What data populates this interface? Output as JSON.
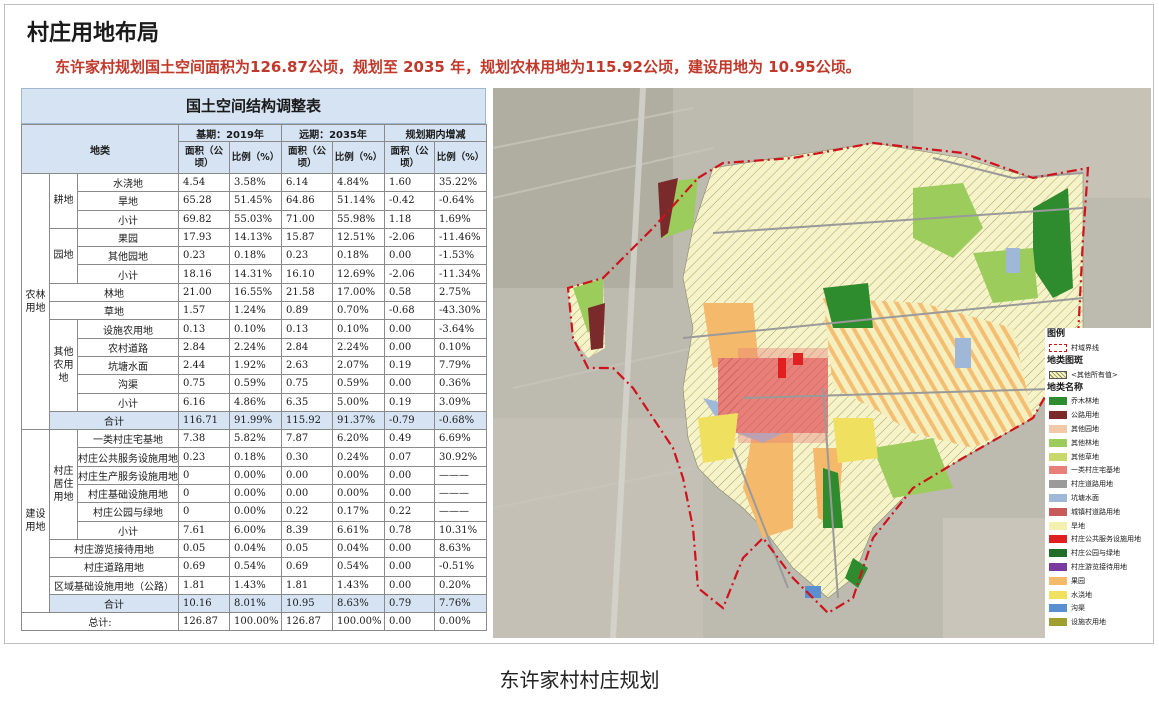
{
  "page_title": "村庄用地布局",
  "summary": "东许家村规划国土空间面积为126.87公顷，规划至 2035 年，规划农林用地为115.92公顷，建设用地为 10.95公顷。",
  "table": {
    "title": "国土空间结构调整表",
    "header": {
      "category": "地类",
      "base": "基期：2019年",
      "future": "远期：2035年",
      "change": "规划期内增减",
      "area": "面积（公顷）",
      "ratio": "比例（%）"
    },
    "groups": {
      "agri": "农林用地",
      "farmland": "耕地",
      "garden": "园地",
      "other_agri": "其他农用地",
      "construction": "建设用地",
      "village_res": "村庄居住用地"
    },
    "rows": [
      {
        "name": "水浇地",
        "v": [
          "4.54",
          "3.58%",
          "6.14",
          "4.84%",
          "1.60",
          "35.22%"
        ]
      },
      {
        "name": "旱地",
        "v": [
          "65.28",
          "51.45%",
          "64.86",
          "51.14%",
          "-0.42",
          "-0.64%"
        ]
      },
      {
        "name": "小计",
        "v": [
          "69.82",
          "55.03%",
          "71.00",
          "55.98%",
          "1.18",
          "1.69%"
        ]
      },
      {
        "name": "果园",
        "v": [
          "17.93",
          "14.13%",
          "15.87",
          "12.51%",
          "-2.06",
          "-11.46%"
        ]
      },
      {
        "name": "其他园地",
        "v": [
          "0.23",
          "0.18%",
          "0.23",
          "0.18%",
          "0.00",
          "-1.53%"
        ]
      },
      {
        "name": "小计",
        "v": [
          "18.16",
          "14.31%",
          "16.10",
          "12.69%",
          "-2.06",
          "-11.34%"
        ]
      },
      {
        "name": "林地",
        "v": [
          "21.00",
          "16.55%",
          "21.58",
          "17.00%",
          "0.58",
          "2.75%"
        ]
      },
      {
        "name": "草地",
        "v": [
          "1.57",
          "1.24%",
          "0.89",
          "0.70%",
          "-0.68",
          "-43.30%"
        ]
      },
      {
        "name": "设施农用地",
        "v": [
          "0.13",
          "0.10%",
          "0.13",
          "0.10%",
          "0.00",
          "-3.64%"
        ]
      },
      {
        "name": "农村道路",
        "v": [
          "2.84",
          "2.24%",
          "2.84",
          "2.24%",
          "0.00",
          "0.10%"
        ]
      },
      {
        "name": "坑塘水面",
        "v": [
          "2.44",
          "1.92%",
          "2.63",
          "2.07%",
          "0.19",
          "7.79%"
        ]
      },
      {
        "name": "沟渠",
        "v": [
          "0.75",
          "0.59%",
          "0.75",
          "0.59%",
          "0.00",
          "0.36%"
        ]
      },
      {
        "name": "小计",
        "v": [
          "6.16",
          "4.86%",
          "6.35",
          "5.00%",
          "0.19",
          "3.09%"
        ]
      },
      {
        "name": "合计",
        "v": [
          "116.71",
          "91.99%",
          "115.92",
          "91.37%",
          "-0.79",
          "-0.68%"
        ]
      },
      {
        "name": "一类村庄宅基地",
        "v": [
          "7.38",
          "5.82%",
          "7.87",
          "6.20%",
          "0.49",
          "6.69%"
        ]
      },
      {
        "name": "村庄公共服务设施用地",
        "v": [
          "0.23",
          "0.18%",
          "0.30",
          "0.24%",
          "0.07",
          "30.92%"
        ]
      },
      {
        "name": "村庄生产服务设施用地",
        "v": [
          "0",
          "0.00%",
          "0.00",
          "0.00%",
          "0.00",
          "———"
        ]
      },
      {
        "name": "村庄基础设施用地",
        "v": [
          "0",
          "0.00%",
          "0.00",
          "0.00%",
          "0.00",
          "———"
        ]
      },
      {
        "name": "村庄公园与绿地",
        "v": [
          "0",
          "0.00%",
          "0.22",
          "0.17%",
          "0.22",
          "———"
        ]
      },
      {
        "name": "小计",
        "v": [
          "7.61",
          "6.00%",
          "8.39",
          "6.61%",
          "0.78",
          "10.31%"
        ]
      },
      {
        "name": "村庄游览接待用地",
        "v": [
          "0.05",
          "0.04%",
          "0.05",
          "0.04%",
          "0.00",
          "8.63%"
        ]
      },
      {
        "name": "村庄道路用地",
        "v": [
          "0.69",
          "0.54%",
          "0.69",
          "0.54%",
          "0.00",
          "-0.51%"
        ]
      },
      {
        "name": "区域基础设施用地（公路）",
        "v": [
          "1.81",
          "1.43%",
          "1.81",
          "1.43%",
          "0.00",
          "0.20%"
        ]
      },
      {
        "name": "合计",
        "v": [
          "10.16",
          "8.01%",
          "10.95",
          "8.63%",
          "0.79",
          "7.76%"
        ]
      },
      {
        "name": "总计:",
        "v": [
          "126.87",
          "100.00%",
          "126.87",
          "100.00%",
          "0.00",
          "0.00%"
        ]
      }
    ]
  },
  "legend": {
    "title": "图例",
    "boundary": "村域界线",
    "ownership_title": "地类图斑",
    "ownership": "<其他所有值>",
    "names_title": "地类名称",
    "items": [
      {
        "label": "乔木林地",
        "color": "#2e8b2e"
      },
      {
        "label": "公路用地",
        "color": "#7a2a2a"
      },
      {
        "label": "其他园地",
        "color": "#f2c9a8"
      },
      {
        "label": "其他林地",
        "color": "#9ccc5c"
      },
      {
        "label": "其他草地",
        "color": "#c8d86a"
      },
      {
        "label": "一类村庄宅基地",
        "color": "#e8807a"
      },
      {
        "label": "村庄道路用地",
        "color": "#9a9a9a"
      },
      {
        "label": "坑塘水面",
        "color": "#9fb8d8"
      },
      {
        "label": "城镇村道路用地",
        "color": "#c85a5a"
      },
      {
        "label": "旱地",
        "color": "#f4f0b0"
      },
      {
        "label": "村庄公共服务设施用地",
        "color": "#e02020"
      },
      {
        "label": "村庄公园与绿地",
        "color": "#1f6e2a"
      },
      {
        "label": "村庄游览接待用地",
        "color": "#7a3aa0"
      },
      {
        "label": "果园",
        "color": "#f4b96a"
      },
      {
        "label": "水浇地",
        "color": "#f0e060"
      },
      {
        "label": "沟渠",
        "color": "#5a8fd0"
      },
      {
        "label": "设施农用地",
        "color": "#a0a030"
      }
    ]
  },
  "caption": "东许家村村庄规划"
}
